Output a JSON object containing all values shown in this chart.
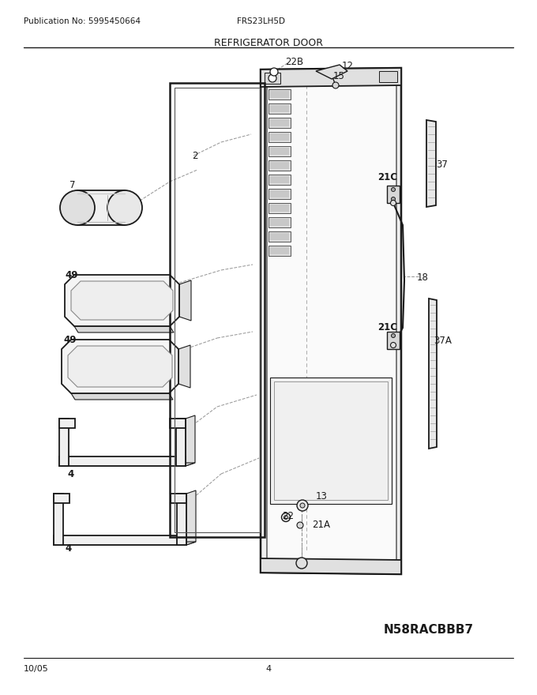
{
  "title": "REFRIGERATOR DOOR",
  "pub_no": "Publication No: 5995450664",
  "model": "FRS23LH5D",
  "date": "10/05",
  "page": "4",
  "footer_code": "N58RACBBB7",
  "bg_color": "#ffffff",
  "line_color": "#1a1a1a",
  "fill_light": "#f5f5f5",
  "fill_mid": "#e8e8e8",
  "fill_dark": "#d0d0d0"
}
